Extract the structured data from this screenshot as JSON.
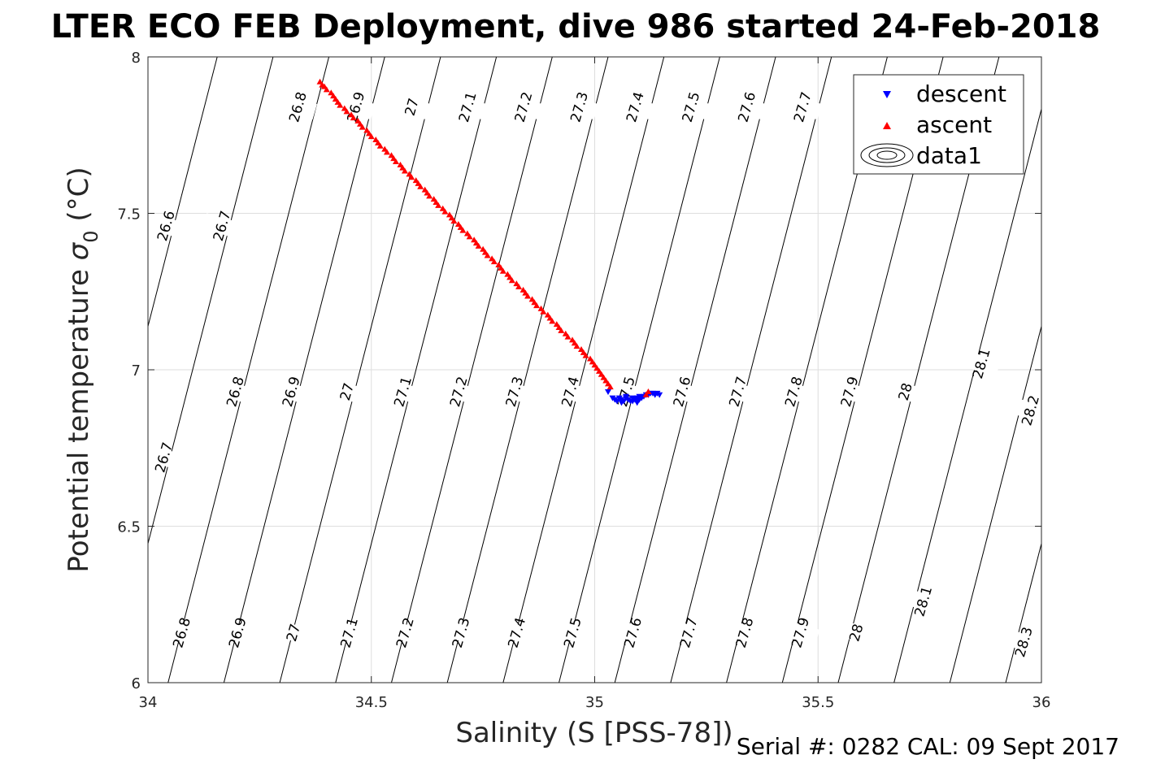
{
  "figure": {
    "title": "LTER ECO FEB Deployment, dive 986 started 24-Feb-2018",
    "footer": "Serial #: 0282  CAL: 09 Sept 2017"
  },
  "chart_data": {
    "type": "scatter",
    "xlabel": "Salinity (S [PSS-78])",
    "ylabel_main": "Potential temperature ",
    "ylabel_symbol": "σ",
    "ylabel_sub": "0",
    "ylabel_unit": " (°C)",
    "xlim": [
      34,
      36
    ],
    "ylim": [
      6,
      8
    ],
    "xticks": [
      34,
      34.5,
      35,
      35.5,
      36
    ],
    "xtick_labels": [
      "34",
      "34.5",
      "35",
      "35.5",
      "36"
    ],
    "yticks": [
      6,
      6.5,
      7,
      7.5,
      8
    ],
    "ytick_labels": [
      "6",
      "6.5",
      "7",
      "7.5",
      "8"
    ],
    "grid": true,
    "legend": {
      "placement": "top-right",
      "entries": [
        {
          "label": "descent",
          "marker": "triangle-down",
          "color": "#0000ff"
        },
        {
          "label": "ascent",
          "marker": "triangle-up",
          "color": "#ff0000"
        },
        {
          "label": "data1",
          "marker": "contour",
          "color": "#000000"
        }
      ]
    },
    "contours": {
      "levels": [
        26.6,
        26.7,
        26.8,
        26.9,
        27.0,
        27.1,
        27.2,
        27.3,
        27.4,
        27.5,
        27.6,
        27.7,
        27.8,
        27.9,
        28.0,
        28.1,
        28.2,
        28.3
      ],
      "lines": [
        {
          "level": 26.8,
          "s_at_t6": 34.045,
          "s_at_t8": 34.405
        },
        {
          "level": 26.9,
          "s_at_t6": 34.17,
          "s_at_t8": 34.53
        },
        {
          "level": 27.0,
          "s_at_t6": 34.295,
          "s_at_t8": 34.655
        },
        {
          "level": 27.1,
          "s_at_t6": 34.42,
          "s_at_t8": 34.78
        },
        {
          "level": 27.2,
          "s_at_t6": 34.545,
          "s_at_t8": 34.905
        },
        {
          "level": 27.3,
          "s_at_t6": 34.67,
          "s_at_t8": 35.03
        },
        {
          "level": 27.4,
          "s_at_t6": 34.795,
          "s_at_t8": 35.155
        },
        {
          "level": 27.5,
          "s_at_t6": 34.92,
          "s_at_t8": 35.28
        },
        {
          "level": 27.6,
          "s_at_t6": 35.045,
          "s_at_t8": 35.405
        },
        {
          "level": 27.7,
          "s_at_t6": 35.17,
          "s_at_t8": 35.53
        },
        {
          "level": 27.8,
          "s_at_t6": 35.295,
          "s_at_t8": 35.655
        },
        {
          "level": 27.9,
          "s_at_t6": 35.42,
          "s_at_t8": 35.78
        },
        {
          "level": 28.0,
          "s_at_t6": 35.545,
          "s_at_t8": 35.905
        },
        {
          "level": 28.1,
          "s_at_t6": 35.67,
          "s_at_t8": 36.03
        },
        {
          "level": 28.2,
          "s_at_t6": 35.795,
          "s_at_t8": 36.155
        },
        {
          "level": 28.3,
          "s_at_t6": 35.92,
          "s_at_t8": 36.28
        },
        {
          "level": 26.7,
          "s_at_t6": 33.92,
          "s_at_t8": 34.28
        },
        {
          "level": 26.6,
          "s_at_t6": 33.795,
          "s_at_t8": 34.155
        }
      ],
      "labels": [
        {
          "text": "26.6",
          "s": 34.04,
          "t": 7.46
        },
        {
          "text": "26.7",
          "s": 34.165,
          "t": 7.46
        },
        {
          "text": "26.8",
          "s": 34.335,
          "t": 7.84
        },
        {
          "text": "26.9",
          "s": 34.465,
          "t": 7.84
        },
        {
          "text": "27",
          "s": 34.59,
          "t": 7.84
        },
        {
          "text": "27.1",
          "s": 34.715,
          "t": 7.84
        },
        {
          "text": "27.2",
          "s": 34.84,
          "t": 7.84
        },
        {
          "text": "27.3",
          "s": 34.965,
          "t": 7.84
        },
        {
          "text": "27.4",
          "s": 35.09,
          "t": 7.84
        },
        {
          "text": "27.5",
          "s": 35.215,
          "t": 7.84
        },
        {
          "text": "27.6",
          "s": 35.34,
          "t": 7.84
        },
        {
          "text": "27.7",
          "s": 35.465,
          "t": 7.84
        },
        {
          "text": "26.8",
          "s": 34.195,
          "t": 6.93
        },
        {
          "text": "26.9",
          "s": 34.32,
          "t": 6.93
        },
        {
          "text": "27",
          "s": 34.445,
          "t": 6.93
        },
        {
          "text": "27.1",
          "s": 34.57,
          "t": 6.93
        },
        {
          "text": "27.2",
          "s": 34.695,
          "t": 6.93
        },
        {
          "text": "27.3",
          "s": 34.82,
          "t": 6.93
        },
        {
          "text": "27.4",
          "s": 34.945,
          "t": 6.93
        },
        {
          "text": "27.5",
          "s": 35.07,
          "t": 6.93
        },
        {
          "text": "27.6",
          "s": 35.195,
          "t": 6.93
        },
        {
          "text": "27.7",
          "s": 35.32,
          "t": 6.93
        },
        {
          "text": "27.8",
          "s": 35.445,
          "t": 6.93
        },
        {
          "text": "27.9",
          "s": 35.57,
          "t": 6.93
        },
        {
          "text": "28",
          "s": 35.695,
          "t": 6.93
        },
        {
          "text": "28.1",
          "s": 35.865,
          "t": 7.02
        },
        {
          "text": "28.2",
          "s": 35.975,
          "t": 6.87
        },
        {
          "text": "26.7",
          "s": 34.035,
          "t": 6.72
        },
        {
          "text": "26.8",
          "s": 34.075,
          "t": 6.16
        },
        {
          "text": "26.9",
          "s": 34.2,
          "t": 6.16
        },
        {
          "text": "27",
          "s": 34.325,
          "t": 6.16
        },
        {
          "text": "27.1",
          "s": 34.45,
          "t": 6.16
        },
        {
          "text": "27.2",
          "s": 34.575,
          "t": 6.16
        },
        {
          "text": "27.3",
          "s": 34.7,
          "t": 6.16
        },
        {
          "text": "27.4",
          "s": 34.825,
          "t": 6.16
        },
        {
          "text": "27.5",
          "s": 34.95,
          "t": 6.16
        },
        {
          "text": "27.6",
          "s": 35.085,
          "t": 6.16
        },
        {
          "text": "27.7",
          "s": 35.21,
          "t": 6.16
        },
        {
          "text": "27.8",
          "s": 35.335,
          "t": 6.16
        },
        {
          "text": "27.9",
          "s": 35.46,
          "t": 6.16
        },
        {
          "text": "28",
          "s": 35.585,
          "t": 6.16
        },
        {
          "text": "28.1",
          "s": 35.735,
          "t": 6.26
        },
        {
          "text": "28.3",
          "s": 35.96,
          "t": 6.13
        }
      ]
    },
    "series": [
      {
        "name": "descent",
        "marker": "triangle-down",
        "color": "#0000ff",
        "points": [
          [
            35.03,
            6.93
          ],
          [
            35.04,
            6.91
          ],
          [
            35.045,
            6.905
          ],
          [
            35.05,
            6.9
          ],
          [
            35.055,
            6.91
          ],
          [
            35.06,
            6.905
          ],
          [
            35.065,
            6.9
          ],
          [
            35.07,
            6.91
          ],
          [
            35.075,
            6.905
          ],
          [
            35.08,
            6.9
          ],
          [
            35.085,
            6.91
          ],
          [
            35.09,
            6.905
          ],
          [
            35.095,
            6.91
          ],
          [
            35.1,
            6.915
          ],
          [
            35.105,
            6.91
          ],
          [
            35.11,
            6.915
          ],
          [
            35.115,
            6.92
          ],
          [
            35.12,
            6.92
          ],
          [
            35.125,
            6.925
          ],
          [
            35.13,
            6.925
          ],
          [
            35.135,
            6.92
          ],
          [
            35.14,
            6.925
          ],
          [
            35.145,
            6.92
          ],
          [
            35.07,
            6.915
          ],
          [
            35.085,
            6.9
          ],
          [
            35.1,
            6.905
          ],
          [
            35.095,
            6.895
          ],
          [
            35.06,
            6.895
          ]
        ]
      },
      {
        "name": "ascent",
        "marker": "triangle-up",
        "color": "#ff0000",
        "points": [
          [
            34.385,
            7.92
          ],
          [
            34.39,
            7.91
          ],
          [
            34.395,
            7.905
          ],
          [
            34.4,
            7.895
          ],
          [
            34.41,
            7.885
          ],
          [
            34.415,
            7.875
          ],
          [
            34.42,
            7.865
          ],
          [
            34.425,
            7.855
          ],
          [
            34.43,
            7.845
          ],
          [
            34.44,
            7.835
          ],
          [
            34.445,
            7.825
          ],
          [
            34.455,
            7.815
          ],
          [
            34.46,
            7.805
          ],
          [
            34.47,
            7.795
          ],
          [
            34.475,
            7.785
          ],
          [
            34.48,
            7.775
          ],
          [
            34.49,
            7.765
          ],
          [
            34.495,
            7.755
          ],
          [
            34.5,
            7.745
          ],
          [
            34.51,
            7.735
          ],
          [
            34.515,
            7.725
          ],
          [
            34.52,
            7.715
          ],
          [
            34.53,
            7.705
          ],
          [
            34.535,
            7.695
          ],
          [
            34.545,
            7.685
          ],
          [
            34.55,
            7.675
          ],
          [
            34.555,
            7.665
          ],
          [
            34.565,
            7.655
          ],
          [
            34.57,
            7.645
          ],
          [
            34.575,
            7.635
          ],
          [
            34.585,
            7.625
          ],
          [
            34.59,
            7.615
          ],
          [
            34.6,
            7.605
          ],
          [
            34.605,
            7.595
          ],
          [
            34.61,
            7.585
          ],
          [
            34.62,
            7.575
          ],
          [
            34.625,
            7.565
          ],
          [
            34.63,
            7.555
          ],
          [
            34.64,
            7.545
          ],
          [
            34.645,
            7.535
          ],
          [
            34.65,
            7.525
          ],
          [
            34.66,
            7.515
          ],
          [
            34.665,
            7.505
          ],
          [
            34.675,
            7.495
          ],
          [
            34.68,
            7.485
          ],
          [
            34.685,
            7.475
          ],
          [
            34.695,
            7.465
          ],
          [
            34.7,
            7.455
          ],
          [
            34.705,
            7.445
          ],
          [
            34.715,
            7.435
          ],
          [
            34.72,
            7.425
          ],
          [
            34.73,
            7.415
          ],
          [
            34.735,
            7.405
          ],
          [
            34.74,
            7.395
          ],
          [
            34.75,
            7.385
          ],
          [
            34.755,
            7.375
          ],
          [
            34.76,
            7.365
          ],
          [
            34.77,
            7.355
          ],
          [
            34.775,
            7.345
          ],
          [
            34.785,
            7.335
          ],
          [
            34.79,
            7.325
          ],
          [
            34.795,
            7.315
          ],
          [
            34.805,
            7.305
          ],
          [
            34.81,
            7.295
          ],
          [
            34.815,
            7.285
          ],
          [
            34.825,
            7.275
          ],
          [
            34.83,
            7.265
          ],
          [
            34.84,
            7.255
          ],
          [
            34.845,
            7.245
          ],
          [
            34.85,
            7.235
          ],
          [
            34.86,
            7.225
          ],
          [
            34.865,
            7.215
          ],
          [
            34.87,
            7.205
          ],
          [
            34.88,
            7.195
          ],
          [
            34.885,
            7.185
          ],
          [
            34.895,
            7.175
          ],
          [
            34.9,
            7.165
          ],
          [
            34.905,
            7.155
          ],
          [
            34.915,
            7.145
          ],
          [
            34.92,
            7.135
          ],
          [
            34.925,
            7.125
          ],
          [
            34.935,
            7.115
          ],
          [
            34.94,
            7.105
          ],
          [
            34.95,
            7.095
          ],
          [
            34.955,
            7.085
          ],
          [
            34.96,
            7.075
          ],
          [
            34.97,
            7.065
          ],
          [
            34.975,
            7.055
          ],
          [
            34.98,
            7.045
          ],
          [
            34.99,
            7.035
          ],
          [
            34.995,
            7.025
          ],
          [
            35.0,
            7.015
          ],
          [
            35.005,
            7.005
          ],
          [
            35.01,
            6.995
          ],
          [
            35.015,
            6.985
          ],
          [
            35.02,
            6.975
          ],
          [
            35.025,
            6.965
          ],
          [
            35.03,
            6.955
          ],
          [
            35.035,
            6.945
          ],
          [
            35.115,
            6.92
          ],
          [
            35.12,
            6.93
          ]
        ]
      }
    ]
  }
}
